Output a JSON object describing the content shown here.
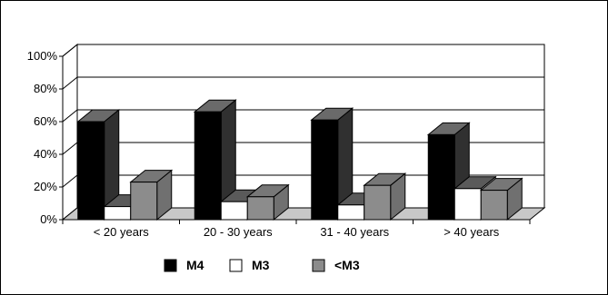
{
  "chart_data": {
    "type": "bar",
    "subtype": "3d-clustered-column",
    "categories": [
      "< 20 years",
      "20 - 30 years",
      "31 - 40 years",
      "> 40 years"
    ],
    "series": [
      {
        "name": "M4",
        "color": "#000000",
        "values": [
          60,
          66,
          61,
          52
        ]
      },
      {
        "name": "M3",
        "color": "#ffffff",
        "values": [
          8,
          11,
          9,
          19
        ]
      },
      {
        "name": "<M3",
        "color": "#8c8c8c",
        "values": [
          23,
          14,
          21,
          18
        ]
      }
    ],
    "yticks": [
      "0%",
      "20%",
      "40%",
      "60%",
      "80%",
      "100%"
    ],
    "ylim": [
      0,
      100
    ],
    "grid": true,
    "legend_position": "bottom"
  }
}
